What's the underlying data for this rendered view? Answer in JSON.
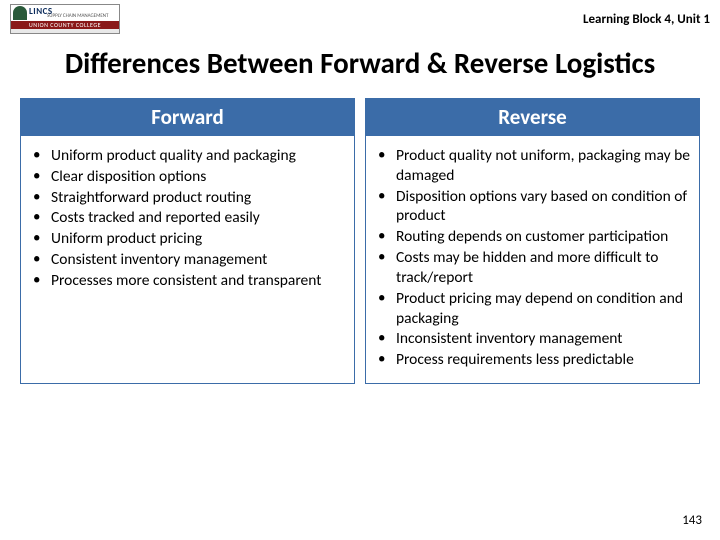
{
  "header": {
    "logo": {
      "main": "LINCS",
      "sub": "SUPPLY CHAIN MANAGEMENT",
      "bottom": "UNION COUNTY COLLEGE"
    },
    "breadcrumb": "Learning Block 4, Unit 1"
  },
  "title": "Differences Between Forward & Reverse Logistics",
  "columns": {
    "left": {
      "header": "Forward",
      "items": [
        "Uniform product quality and packaging",
        "Clear disposition options",
        "Straightforward product routing",
        "Costs tracked and reported easily",
        "Uniform product pricing",
        "Consistent inventory management",
        "Processes more consistent and transparent"
      ]
    },
    "right": {
      "header": "Reverse",
      "items": [
        "Product quality not uniform, packaging may be damaged",
        "Disposition options vary based on condition of product",
        "Routing depends on customer participation",
        "Costs may be hidden and more difficult to track/report",
        "Product pricing may depend on condition and packaging",
        "Inconsistent inventory management",
        "Process requirements less predictable"
      ]
    }
  },
  "page_number": "143",
  "colors": {
    "header_bg": "#3b6ca8",
    "header_fg": "#ffffff",
    "text": "#000000",
    "logo_red": "#8a1a1a"
  }
}
